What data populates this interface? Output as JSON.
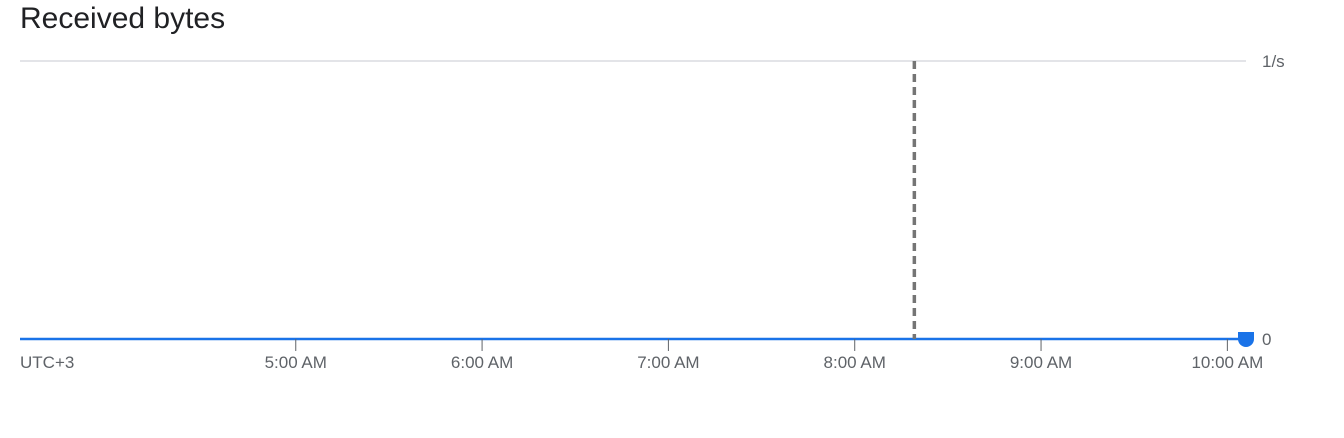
{
  "widget": {
    "title": "Received bytes"
  },
  "chart_data": {
    "type": "line",
    "title": "Received bytes",
    "xlabel": "",
    "ylabel": "",
    "timezone_label": "UTC+3",
    "x_tick_labels": [
      "5:00 AM",
      "6:00 AM",
      "7:00 AM",
      "8:00 AM",
      "9:00 AM",
      "10:00 AM"
    ],
    "x_ticks_hours": [
      5,
      6,
      7,
      8,
      9,
      10
    ],
    "xlim_hours": [
      3.52,
      10.1
    ],
    "y_tick_labels": [
      "1/s",
      "0"
    ],
    "ylim": [
      0,
      1
    ],
    "grid": true,
    "series": [
      {
        "color": "#1a73e8",
        "x_hours": [
          3.52,
          10.1
        ],
        "values": [
          0,
          0
        ]
      }
    ],
    "marker_line_hour": 8.32,
    "colors": {
      "series": "#1a73e8",
      "grid": "#dadce0",
      "marker_line": "#757575",
      "axis_text": "#5f6368"
    }
  }
}
